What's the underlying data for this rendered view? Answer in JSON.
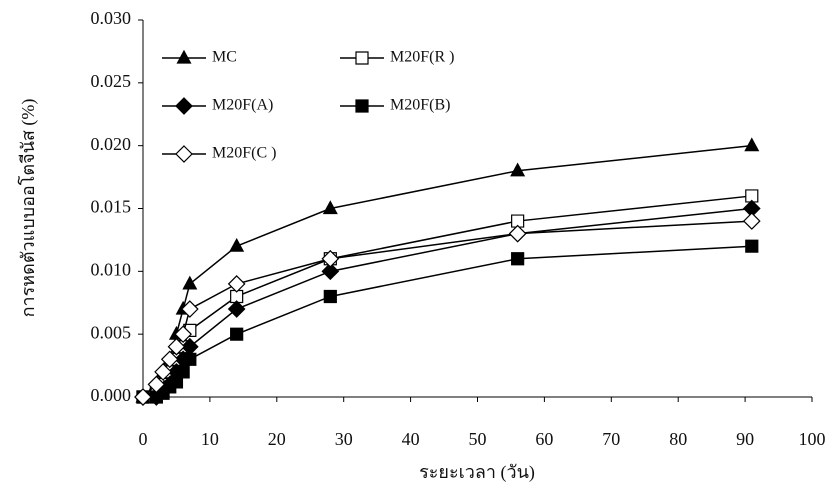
{
  "chart_data": {
    "type": "line",
    "x_label": "ระยะเวลา (วัน)",
    "y_label": "การหดตัวแบบออโตจีนัส (%)",
    "x": [
      0,
      2,
      3,
      4,
      5,
      6,
      7,
      14,
      28,
      56,
      91
    ],
    "series": [
      {
        "name": "MC",
        "color": "#000000",
        "marker": "triangle",
        "values": [
          0,
          0.001,
          0.002,
          0.003,
          0.005,
          0.007,
          0.009,
          0.012,
          0.015,
          0.018,
          0.02
        ]
      },
      {
        "name": "M20F(R )",
        "color": "#000000",
        "marker": "square-open",
        "values": [
          0,
          0.0005,
          0.001,
          0.002,
          0.003,
          0.004,
          0.0053,
          0.008,
          0.011,
          0.014,
          0.016
        ]
      },
      {
        "name": "M20F(A)",
        "color": "#000000",
        "marker": "diamond",
        "values": [
          0,
          0,
          0.0005,
          0.001,
          0.002,
          0.003,
          0.004,
          0.007,
          0.01,
          0.013,
          0.015
        ]
      },
      {
        "name": "M20F(B)",
        "color": "#000000",
        "marker": "square",
        "values": [
          0,
          0,
          0.0003,
          0.0008,
          0.0012,
          0.002,
          0.003,
          0.005,
          0.008,
          0.011,
          0.012
        ]
      },
      {
        "name": "M20F(C )",
        "color": "#000000",
        "marker": "diamond-open",
        "values": [
          0,
          0.001,
          0.002,
          0.003,
          0.004,
          0.005,
          0.007,
          0.009,
          0.011,
          0.013,
          0.014
        ]
      }
    ],
    "xlim": [
      0,
      100
    ],
    "xticks": [
      0,
      10,
      20,
      30,
      40,
      50,
      60,
      70,
      80,
      90,
      100
    ],
    "ylim": [
      0,
      0.03
    ],
    "yticks": [
      {
        "value": 0,
        "label": "0.000"
      },
      {
        "value": 0.005,
        "label": "0.005"
      },
      {
        "value": 0.01,
        "label": "0.010"
      },
      {
        "value": 0.015,
        "label": "0.015"
      },
      {
        "value": 0.02,
        "label": "0.020"
      },
      {
        "value": 0.025,
        "label": "0.025"
      },
      {
        "value": 0.03,
        "label": "0.030"
      }
    ],
    "grid": false,
    "legend": "upper-left"
  }
}
